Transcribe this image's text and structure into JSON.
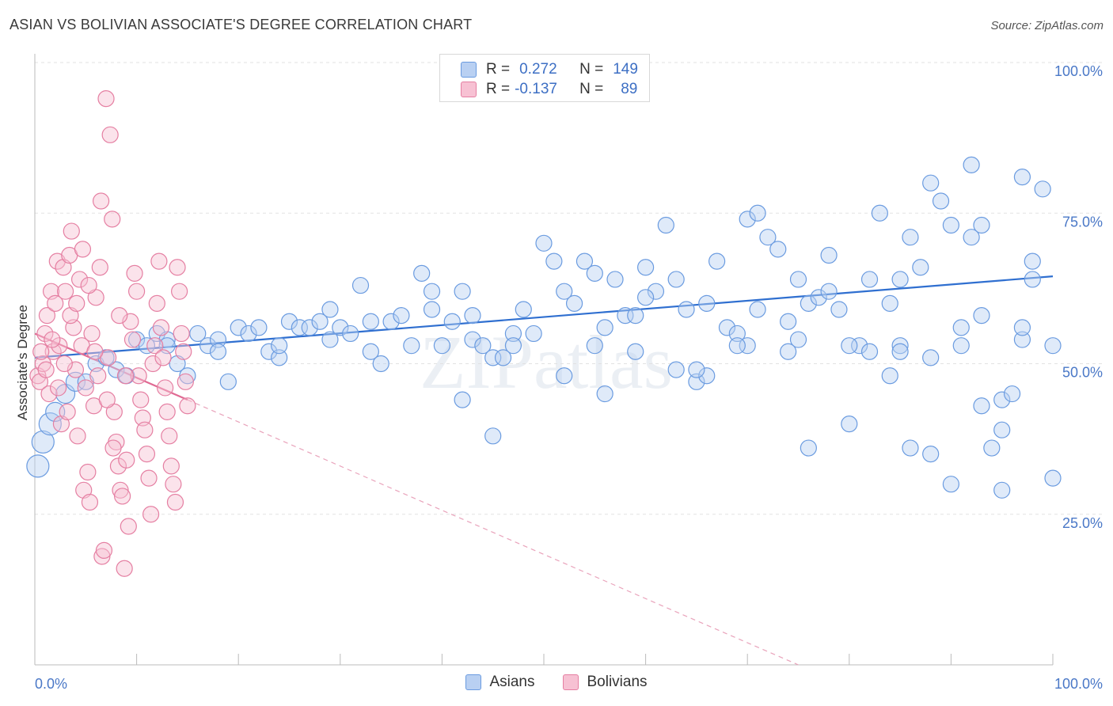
{
  "title": "ASIAN VS BOLIVIAN ASSOCIATE'S DEGREE CORRELATION CHART",
  "source": "Source: ZipAtlas.com",
  "watermark": "ZIPatlas",
  "legend": {
    "rows": [
      {
        "r_label": "R =",
        "r_value": "0.272",
        "n_label": "N =",
        "n_value": "149",
        "color": "#6a9be0",
        "fill": "#b9d0f2"
      },
      {
        "r_label": "R =",
        "r_value": "-0.137",
        "n_label": "N =",
        "n_value": "89",
        "color": "#e57fa2",
        "fill": "#f7c1d3"
      }
    ]
  },
  "chart_data": {
    "type": "scatter",
    "ylabel": "Associate's Degree",
    "xlim": [
      0,
      100
    ],
    "ylim": [
      0,
      100
    ],
    "x_tick_labels": [
      "0.0%",
      "100.0%"
    ],
    "y_ticks": [
      {
        "value": 25,
        "label": "25.0%"
      },
      {
        "value": 50,
        "label": "50.0%"
      },
      {
        "value": 75,
        "label": "75.0%"
      },
      {
        "value": 100,
        "label": "100.0%"
      }
    ],
    "grid": "horizontal dashed",
    "series": [
      {
        "name": "Asians",
        "color": "#6a9be0",
        "fill": "#b9d0f2",
        "trend": {
          "x0": 0,
          "y0": 51,
          "x1": 100,
          "y1": 64.5,
          "x_end_solid": 100
        },
        "points": [
          [
            0.3,
            33
          ],
          [
            0.8,
            37
          ],
          [
            1.5,
            40
          ],
          [
            2,
            42
          ],
          [
            3,
            45
          ],
          [
            4,
            47
          ],
          [
            5,
            47
          ],
          [
            6,
            50
          ],
          [
            7,
            51
          ],
          [
            8,
            49
          ],
          [
            9,
            48
          ],
          [
            10,
            54
          ],
          [
            11,
            53
          ],
          [
            12,
            55
          ],
          [
            13,
            54
          ],
          [
            14,
            50
          ],
          [
            15,
            48
          ],
          [
            16,
            55
          ],
          [
            17,
            53
          ],
          [
            18,
            54
          ],
          [
            19,
            47
          ],
          [
            20,
            56
          ],
          [
            21,
            55
          ],
          [
            22,
            56
          ],
          [
            23,
            52
          ],
          [
            24,
            51
          ],
          [
            25,
            57
          ],
          [
            26,
            56
          ],
          [
            27,
            56
          ],
          [
            28,
            57
          ],
          [
            29,
            59
          ],
          [
            30,
            56
          ],
          [
            31,
            55
          ],
          [
            32,
            63
          ],
          [
            33,
            52
          ],
          [
            34,
            50
          ],
          [
            35,
            57
          ],
          [
            36,
            58
          ],
          [
            37,
            53
          ],
          [
            38,
            65
          ],
          [
            39,
            59
          ],
          [
            40,
            53
          ],
          [
            41,
            57
          ],
          [
            42,
            62
          ],
          [
            43,
            54
          ],
          [
            44,
            53
          ],
          [
            45,
            51
          ],
          [
            46,
            51
          ],
          [
            47,
            55
          ],
          [
            48,
            59
          ],
          [
            49,
            55
          ],
          [
            50,
            70
          ],
          [
            51,
            67
          ],
          [
            52,
            62
          ],
          [
            53,
            60
          ],
          [
            54,
            67
          ],
          [
            55,
            65
          ],
          [
            56,
            56
          ],
          [
            57,
            64
          ],
          [
            58,
            58
          ],
          [
            59,
            58
          ],
          [
            60,
            66
          ],
          [
            61,
            62
          ],
          [
            62,
            73
          ],
          [
            63,
            64
          ],
          [
            64,
            59
          ],
          [
            65,
            47
          ],
          [
            66,
            48
          ],
          [
            67,
            67
          ],
          [
            68,
            56
          ],
          [
            69,
            55
          ],
          [
            70,
            74
          ],
          [
            71,
            75
          ],
          [
            72,
            71
          ],
          [
            73,
            69
          ],
          [
            74,
            57
          ],
          [
            75,
            54
          ],
          [
            76,
            60
          ],
          [
            77,
            61
          ],
          [
            78,
            68
          ],
          [
            79,
            59
          ],
          [
            80,
            40
          ],
          [
            81,
            53
          ],
          [
            82,
            52
          ],
          [
            83,
            75
          ],
          [
            84,
            60
          ],
          [
            85,
            53
          ],
          [
            86,
            71
          ],
          [
            87,
            66
          ],
          [
            88,
            51
          ],
          [
            89,
            77
          ],
          [
            90,
            73
          ],
          [
            91,
            53
          ],
          [
            92,
            71
          ],
          [
            93,
            58
          ],
          [
            94,
            36
          ],
          [
            95,
            44
          ],
          [
            96,
            45
          ],
          [
            97,
            54
          ],
          [
            98,
            64
          ],
          [
            99,
            79
          ],
          [
            100,
            53
          ],
          [
            42,
            44
          ],
          [
            45,
            38
          ],
          [
            52,
            48
          ],
          [
            56,
            45
          ],
          [
            60,
            61
          ],
          [
            65,
            49
          ],
          [
            70,
            53
          ],
          [
            76,
            36
          ],
          [
            80,
            53
          ],
          [
            84,
            48
          ],
          [
            88,
            35
          ],
          [
            90,
            30
          ],
          [
            92,
            83
          ],
          [
            93,
            43
          ],
          [
            95,
            29
          ],
          [
            97,
            81
          ],
          [
            98,
            67
          ],
          [
            100,
            31
          ],
          [
            85,
            64
          ],
          [
            82,
            64
          ],
          [
            75,
            64
          ],
          [
            78,
            62
          ],
          [
            71,
            59
          ],
          [
            66,
            60
          ],
          [
            63,
            49
          ],
          [
            86,
            36
          ],
          [
            95,
            39
          ],
          [
            93,
            73
          ],
          [
            88,
            80
          ],
          [
            97,
            56
          ],
          [
            85,
            52
          ],
          [
            91,
            56
          ],
          [
            74,
            52
          ],
          [
            69,
            53
          ],
          [
            59,
            52
          ],
          [
            55,
            53
          ],
          [
            47,
            53
          ],
          [
            43,
            58
          ],
          [
            39,
            62
          ],
          [
            33,
            57
          ],
          [
            29,
            54
          ],
          [
            24,
            53
          ],
          [
            18,
            52
          ],
          [
            13,
            53
          ]
        ]
      },
      {
        "name": "Bolivians",
        "color": "#e57fa2",
        "fill": "#f7c1d3",
        "trend": {
          "x0": 0,
          "y0": 55,
          "x1": 75,
          "y1": 0,
          "x_end_solid": 15
        },
        "points": [
          [
            0.3,
            48
          ],
          [
            0.5,
            47
          ],
          [
            0.8,
            50
          ],
          [
            1,
            55
          ],
          [
            1.2,
            58
          ],
          [
            1.4,
            45
          ],
          [
            1.6,
            62
          ],
          [
            1.8,
            52
          ],
          [
            2,
            60
          ],
          [
            2.2,
            67
          ],
          [
            2.4,
            53
          ],
          [
            2.6,
            40
          ],
          [
            2.8,
            66
          ],
          [
            3,
            62
          ],
          [
            3.2,
            42
          ],
          [
            3.4,
            68
          ],
          [
            3.6,
            72
          ],
          [
            3.8,
            56
          ],
          [
            4,
            49
          ],
          [
            4.2,
            38
          ],
          [
            4.4,
            64
          ],
          [
            4.6,
            53
          ],
          [
            4.8,
            29
          ],
          [
            5,
            46
          ],
          [
            5.2,
            32
          ],
          [
            5.4,
            27
          ],
          [
            5.6,
            55
          ],
          [
            5.8,
            43
          ],
          [
            6,
            61
          ],
          [
            6.2,
            48
          ],
          [
            6.4,
            66
          ],
          [
            6.6,
            18
          ],
          [
            6.8,
            19
          ],
          [
            7,
            94
          ],
          [
            7.2,
            51
          ],
          [
            7.4,
            88
          ],
          [
            7.6,
            74
          ],
          [
            7.8,
            42
          ],
          [
            8,
            37
          ],
          [
            8.2,
            33
          ],
          [
            8.4,
            29
          ],
          [
            8.6,
            28
          ],
          [
            8.8,
            16
          ],
          [
            9,
            34
          ],
          [
            9.2,
            23
          ],
          [
            9.4,
            57
          ],
          [
            9.6,
            54
          ],
          [
            9.8,
            65
          ],
          [
            10,
            62
          ],
          [
            10.2,
            48
          ],
          [
            10.4,
            44
          ],
          [
            10.6,
            41
          ],
          [
            10.8,
            39
          ],
          [
            11,
            35
          ],
          [
            11.2,
            31
          ],
          [
            11.4,
            25
          ],
          [
            11.6,
            50
          ],
          [
            11.8,
            53
          ],
          [
            12,
            60
          ],
          [
            12.2,
            67
          ],
          [
            12.4,
            56
          ],
          [
            12.6,
            51
          ],
          [
            12.8,
            46
          ],
          [
            13,
            42
          ],
          [
            13.2,
            38
          ],
          [
            13.4,
            33
          ],
          [
            13.6,
            30
          ],
          [
            13.8,
            27
          ],
          [
            14,
            66
          ],
          [
            14.2,
            62
          ],
          [
            14.4,
            55
          ],
          [
            14.6,
            52
          ],
          [
            14.8,
            47
          ],
          [
            15,
            43
          ],
          [
            0.6,
            52
          ],
          [
            1.1,
            49
          ],
          [
            1.7,
            54
          ],
          [
            2.3,
            46
          ],
          [
            2.9,
            50
          ],
          [
            3.5,
            58
          ],
          [
            4.1,
            60
          ],
          [
            4.7,
            69
          ],
          [
            5.3,
            63
          ],
          [
            5.9,
            52
          ],
          [
            6.5,
            77
          ],
          [
            7.1,
            44
          ],
          [
            7.7,
            36
          ],
          [
            8.3,
            58
          ],
          [
            8.9,
            48
          ]
        ]
      }
    ]
  },
  "bottom_legend": [
    {
      "label": "Asians",
      "color": "#6a9be0",
      "fill": "#b9d0f2"
    },
    {
      "label": "Bolivians",
      "color": "#e57fa2",
      "fill": "#f7c1d3"
    }
  ]
}
